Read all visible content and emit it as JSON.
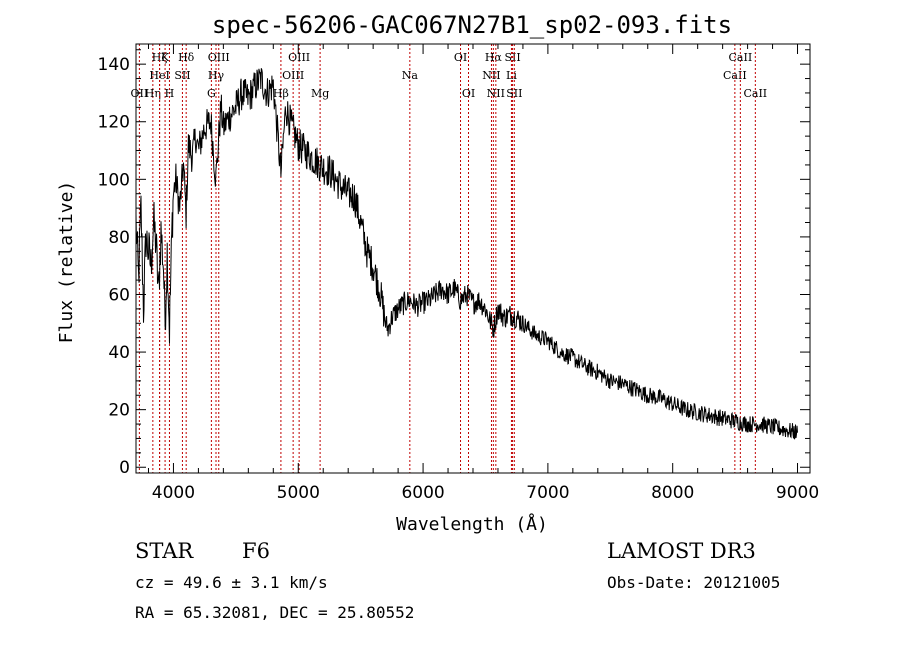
{
  "chart_data": {
    "type": "line",
    "title": "spec-56206-GAC067N27B1_sp02-093.fits",
    "xlabel": "Wavelength (Å)",
    "ylabel": "Flux (relative)",
    "xlim": [
      3700,
      9100
    ],
    "ylim": [
      -2,
      147
    ],
    "xticks": [
      4000,
      5000,
      6000,
      7000,
      8000,
      9000
    ],
    "yticks": [
      0,
      20,
      40,
      60,
      80,
      100,
      120,
      140
    ],
    "series": [
      {
        "name": "spectrum",
        "x": [
          3700,
          3720,
          3740,
          3760,
          3780,
          3800,
          3820,
          3840,
          3860,
          3880,
          3900,
          3920,
          3933,
          3950,
          3968,
          3990,
          4000,
          4020,
          4050,
          4080,
          4101,
          4120,
          4150,
          4180,
          4200,
          4250,
          4300,
          4340,
          4380,
          4400,
          4450,
          4500,
          4550,
          4600,
          4650,
          4700,
          4750,
          4800,
          4861,
          4900,
          4950,
          5000,
          5050,
          5100,
          5150,
          5200,
          5250,
          5300,
          5350,
          5400,
          5450,
          5500,
          5550,
          5600,
          5650,
          5680,
          5700,
          5720,
          5750,
          5800,
          5850,
          5893,
          5950,
          6000,
          6050,
          6100,
          6150,
          6200,
          6250,
          6300,
          6350,
          6400,
          6450,
          6500,
          6563,
          6600,
          6650,
          6700,
          6750,
          6800,
          6850,
          6900,
          6950,
          7000,
          7100,
          7200,
          7300,
          7400,
          7500,
          7600,
          7700,
          7800,
          7900,
          8000,
          8100,
          8200,
          8300,
          8400,
          8500,
          8600,
          8700,
          8800,
          8900,
          9000
        ],
        "y": [
          85,
          65,
          90,
          55,
          80,
          75,
          70,
          85,
          78,
          60,
          82,
          70,
          50,
          75,
          48,
          85,
          95,
          100,
          90,
          105,
          88,
          112,
          108,
          115,
          110,
          118,
          120,
          100,
          125,
          118,
          122,
          125,
          130,
          128,
          132,
          135,
          130,
          133,
          102,
          125,
          118,
          112,
          110,
          108,
          106,
          104,
          103,
          100,
          97,
          95,
          94,
          85,
          75,
          70,
          62,
          55,
          50,
          48,
          52,
          55,
          57,
          58,
          56,
          57,
          58,
          60,
          62,
          60,
          62,
          58,
          60,
          57,
          58,
          55,
          48,
          55,
          52,
          53,
          52,
          50,
          48,
          46,
          45,
          44,
          40,
          38,
          35,
          33,
          30,
          29,
          27,
          25,
          24,
          22,
          20,
          19,
          18,
          17,
          16,
          15,
          15,
          14,
          13,
          12
        ]
      }
    ],
    "line_markers": [
      {
        "x": 3727,
        "label": "OII",
        "row": 2
      },
      {
        "x": 3835,
        "label": "Hη",
        "row": 2
      },
      {
        "x": 3889,
        "label": "Hζ",
        "row": 0
      },
      {
        "x": 3889,
        "label": "HeI",
        "row": 1
      },
      {
        "x": 3933,
        "label": "K",
        "row": 0
      },
      {
        "x": 3968,
        "label": "H",
        "row": 2
      },
      {
        "x": 4072,
        "label": "SII",
        "row": 1
      },
      {
        "x": 4102,
        "label": "Hδ",
        "row": 0
      },
      {
        "x": 4304,
        "label": "G",
        "row": 2
      },
      {
        "x": 4341,
        "label": "Hγ",
        "row": 1
      },
      {
        "x": 4363,
        "label": "OIII",
        "row": 0
      },
      {
        "x": 4861,
        "label": "Hβ",
        "row": 2
      },
      {
        "x": 4959,
        "label": "OIII",
        "row": 1
      },
      {
        "x": 5007,
        "label": "OIII",
        "row": 0
      },
      {
        "x": 5175,
        "label": "Mg",
        "row": 2
      },
      {
        "x": 5894,
        "label": "Na",
        "row": 1
      },
      {
        "x": 6300,
        "label": "OI",
        "row": 0
      },
      {
        "x": 6364,
        "label": "OI",
        "row": 2
      },
      {
        "x": 6548,
        "label": "NII",
        "row": 1
      },
      {
        "x": 6563,
        "label": "Hα",
        "row": 0
      },
      {
        "x": 6583,
        "label": "NII",
        "row": 2
      },
      {
        "x": 6708,
        "label": "Li",
        "row": 1
      },
      {
        "x": 6717,
        "label": "SII",
        "row": 0
      },
      {
        "x": 6731,
        "label": "SII",
        "row": 2
      },
      {
        "x": 8498,
        "label": "CaII",
        "row": 1
      },
      {
        "x": 8542,
        "label": "CaII",
        "row": 0
      },
      {
        "x": 8662,
        "label": "CaII",
        "row": 2
      }
    ],
    "marker_color": "#c00000",
    "line_color": "#000000"
  },
  "info": {
    "class_label": "STAR",
    "subclass": "F6",
    "survey": "LAMOST DR3",
    "redshift": "cz =  49.6 ± 3.1 km/s",
    "obs_date": "Obs-Date: 20121005",
    "coords": "RA =  65.32081, DEC =  25.80552"
  }
}
